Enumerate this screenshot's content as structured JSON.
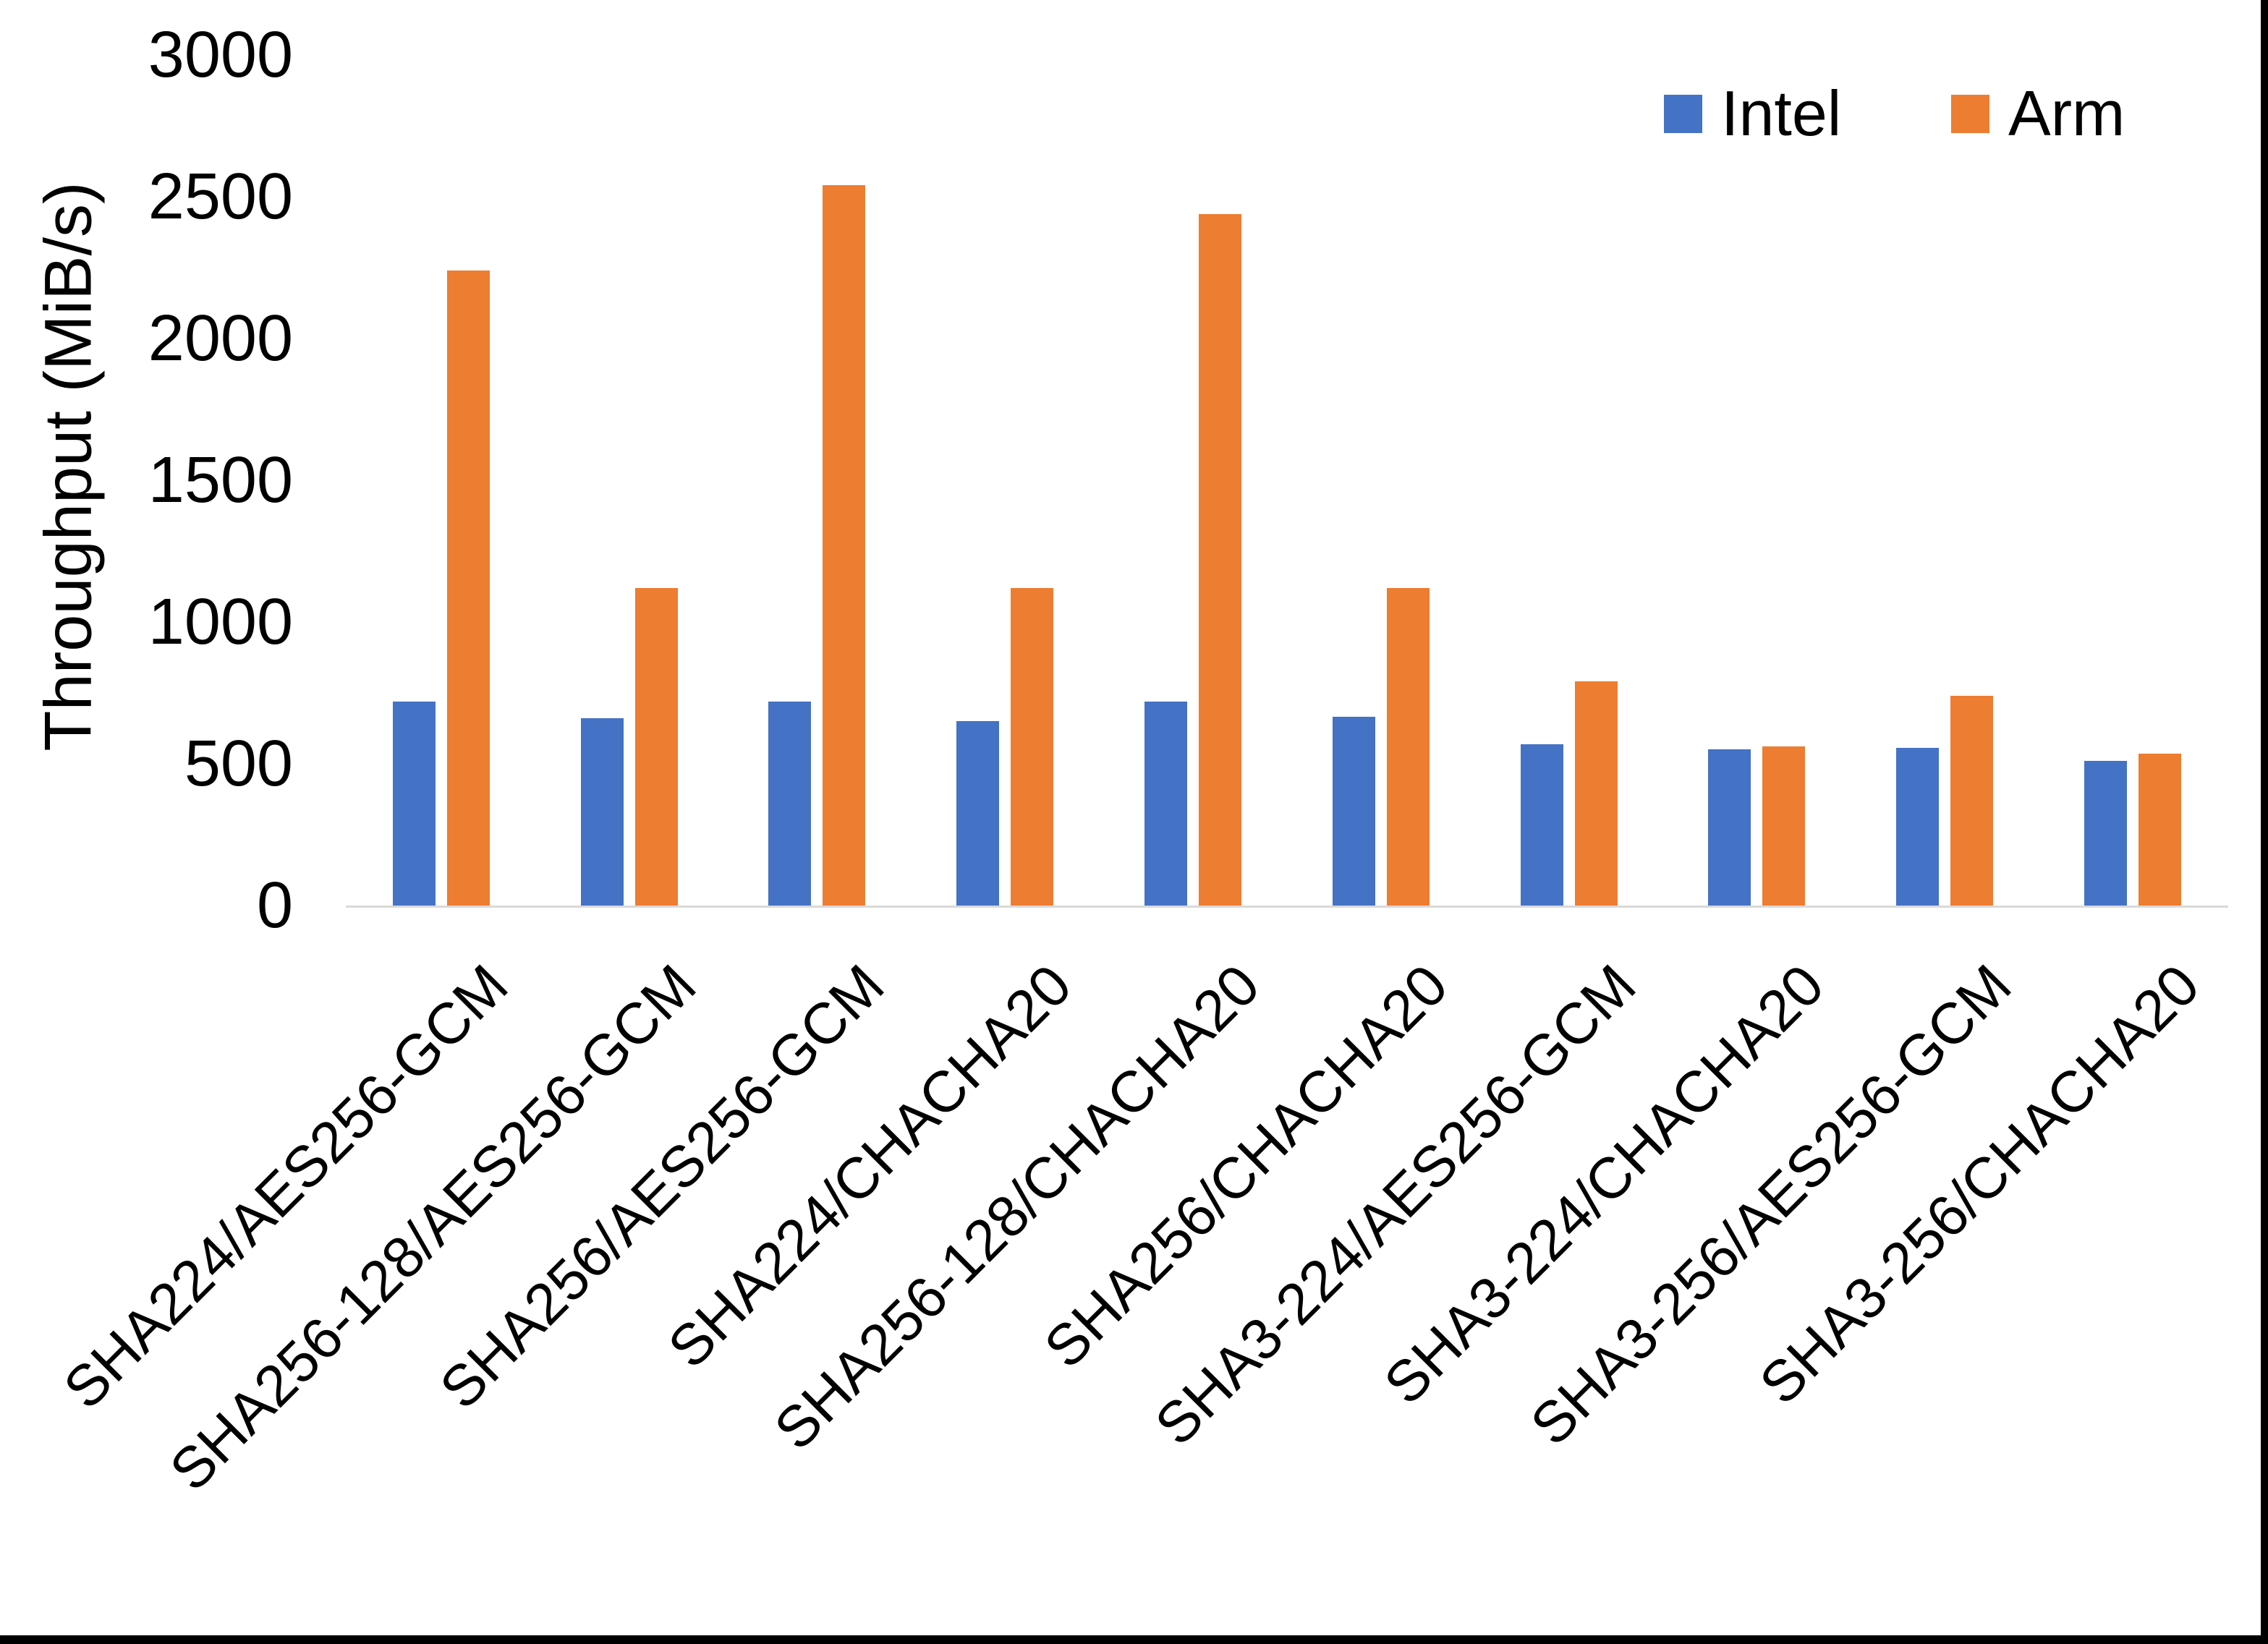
{
  "chart_data": {
    "type": "bar",
    "title": "",
    "xlabel": "",
    "ylabel": "Throughput (MiB/s)",
    "ylim": [
      0,
      3000
    ],
    "yticks": [
      0,
      500,
      1000,
      1500,
      2000,
      2500,
      3000
    ],
    "grid": false,
    "legend_position": "top-right",
    "categories": [
      "SHA224/AES256-GCM",
      "SHA256-128/AES256-GCM",
      "SHA256/AES256-GCM",
      "SHA224/CHACHA20",
      "SHA256-128/CHACHA20",
      "SHA256/CHACHA20",
      "SHA3-224/AES256-GCM",
      "SHA3-224/CHACHA20",
      "SHA3-256/AES256-GCM",
      "SHA3-256/CHACHA20"
    ],
    "series": [
      {
        "name": "Intel",
        "color": "#4472C4",
        "values": [
          720,
          660,
          720,
          650,
          720,
          665,
          570,
          550,
          555,
          510
        ]
      },
      {
        "name": "Arm",
        "color": "#ED7D31",
        "values": [
          2240,
          1120,
          2540,
          1120,
          2440,
          1120,
          790,
          560,
          740,
          535
        ]
      }
    ]
  },
  "y_axis": {
    "title": "Throughput (MiB/s)",
    "tick_labels": [
      "3000",
      "2500",
      "2000",
      "1500",
      "1000",
      "500",
      "0"
    ]
  },
  "legend": {
    "items": [
      {
        "label": "Intel",
        "color": "#4472C4"
      },
      {
        "label": "Arm",
        "color": "#ED7D31"
      }
    ]
  },
  "styles": {
    "background": "#FFFFFF",
    "text_color": "#000000",
    "axis_line_color": "#D9D9D9",
    "frame_border_color": "#000000"
  }
}
